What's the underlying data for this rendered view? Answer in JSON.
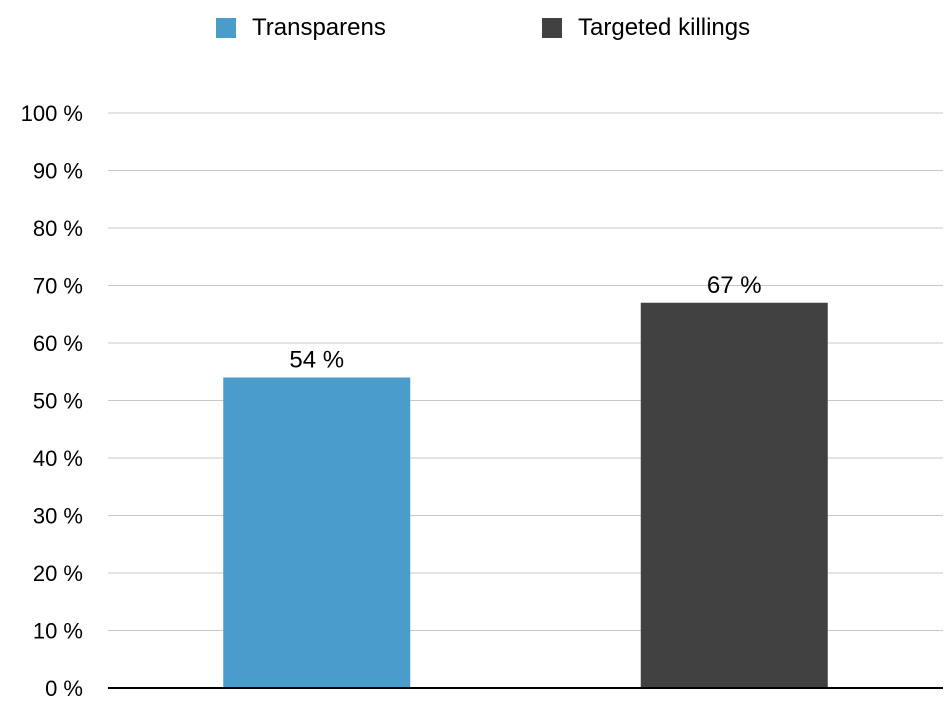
{
  "chart_data": {
    "type": "bar",
    "categories": [
      "Transparens",
      "Targeted killings"
    ],
    "values": [
      54,
      67
    ],
    "value_labels": [
      "54 %",
      "67 %"
    ],
    "colors": [
      "#4a9ccb",
      "#414141"
    ],
    "ylim": [
      0,
      100
    ],
    "yticks": [
      0,
      10,
      20,
      30,
      40,
      50,
      60,
      70,
      80,
      90,
      100
    ],
    "ytick_labels": [
      "0 %",
      "10 %",
      "20 %",
      "30 %",
      "40 %",
      "50 %",
      "60 %",
      "70 %",
      "80 %",
      "90 %",
      "100 %"
    ],
    "grid": true,
    "legend_position": "top-center",
    "title": "",
    "xlabel": "",
    "ylabel": ""
  },
  "legend": {
    "items": [
      {
        "label": "Transparens",
        "color": "#4a9ccb"
      },
      {
        "label": "Targeted killings",
        "color": "#414141"
      }
    ]
  }
}
